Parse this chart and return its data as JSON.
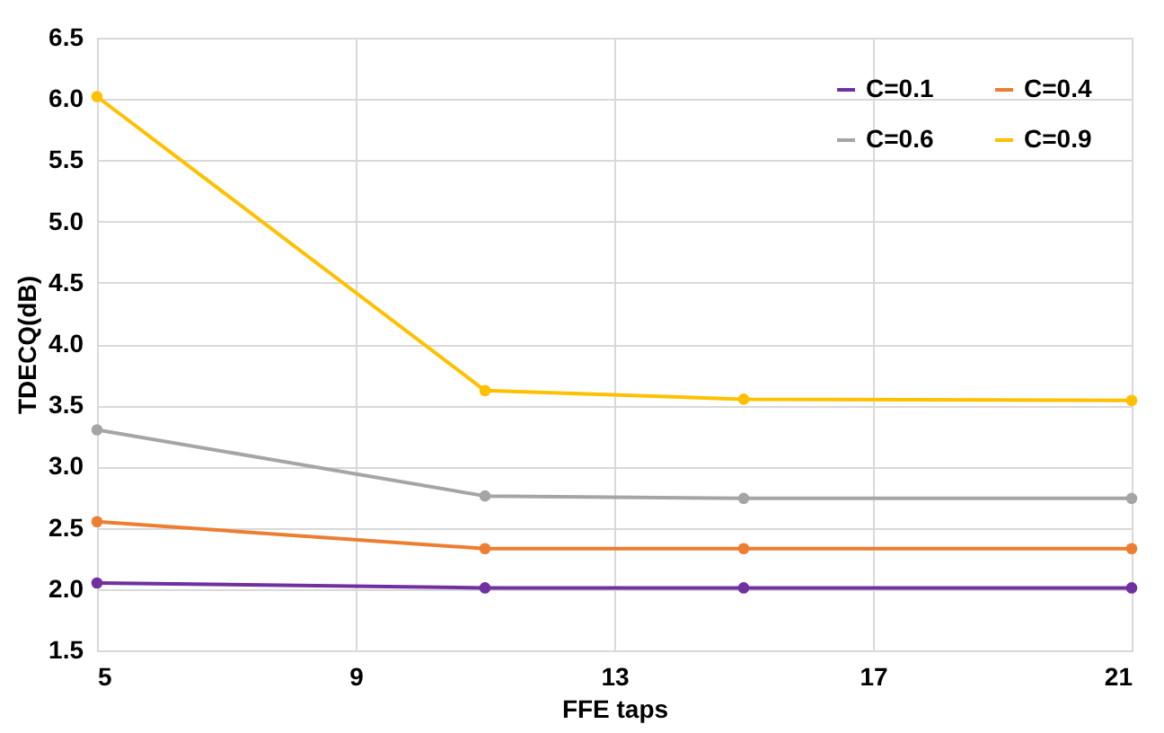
{
  "chart_data": {
    "type": "line",
    "xlabel": "FFE taps",
    "ylabel": "TDECQ(dB)",
    "x": [
      5,
      11,
      15,
      21
    ],
    "series": [
      {
        "name": "C=0.1",
        "color": "#7030a0",
        "values": [
          2.05,
          2.01,
          2.01,
          2.01
        ]
      },
      {
        "name": "C=0.4",
        "color": "#ed7d31",
        "values": [
          2.55,
          2.33,
          2.33,
          2.33
        ]
      },
      {
        "name": "C=0.6",
        "color": "#a5a5a5",
        "values": [
          3.3,
          2.76,
          2.74,
          2.74
        ]
      },
      {
        "name": "C=0.9",
        "color": "#ffc000",
        "values": [
          6.02,
          3.62,
          3.55,
          3.54
        ]
      }
    ],
    "xlim": [
      5,
      21
    ],
    "xticks": [
      5,
      9,
      13,
      17,
      21
    ],
    "ylim": [
      1.5,
      6.5
    ],
    "yticks": [
      {
        "value": 1.5,
        "label": "1.5"
      },
      {
        "value": 2,
        "label": "2.0"
      },
      {
        "value": 2.5,
        "label": "2.5"
      },
      {
        "value": 3,
        "label": "3.0"
      },
      {
        "value": 3.5,
        "label": "3.5"
      },
      {
        "value": 4,
        "label": "4.0"
      },
      {
        "value": 4.5,
        "label": "4.5"
      },
      {
        "value": 5,
        "label": "5.0"
      },
      {
        "value": 5.5,
        "label": "5.5"
      },
      {
        "value": 6,
        "label": "6.0"
      },
      {
        "value": 6.5,
        "label": "6.5"
      }
    ],
    "grid": true,
    "legend": "top right",
    "marker": "circle",
    "line_style": "solid"
  }
}
